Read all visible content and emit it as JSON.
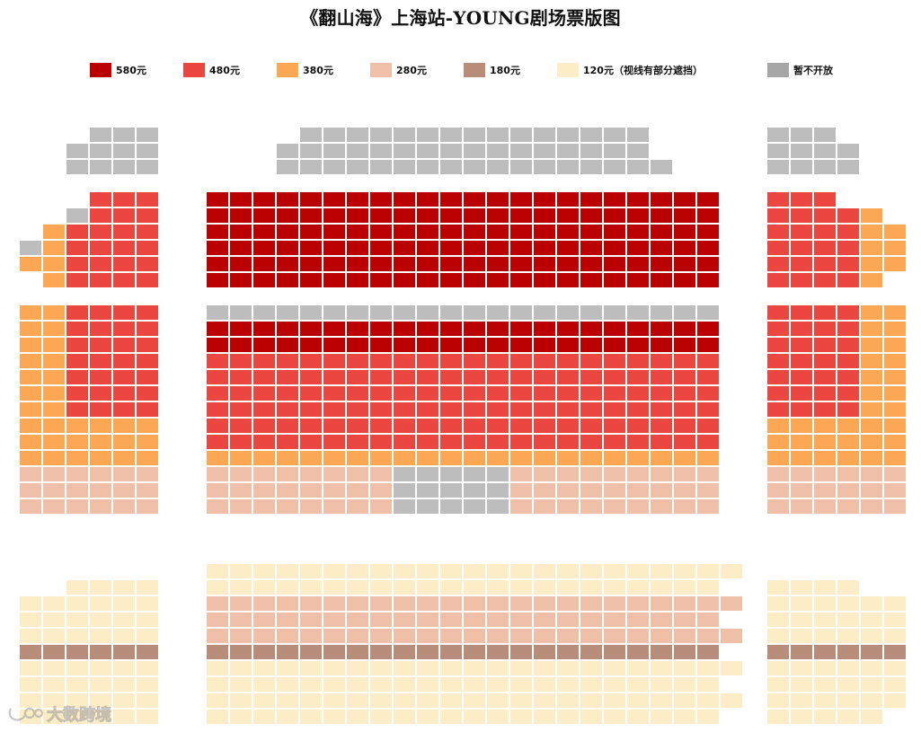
{
  "title": "《翻山海》上海站-YOUNG剧场票版图",
  "legend": [
    {
      "key": "p580",
      "label": "580元",
      "color": "#bb0000"
    },
    {
      "key": "p480",
      "label": "480元",
      "color": "#ec4640"
    },
    {
      "key": "p380",
      "label": "380元",
      "color": "#fba753"
    },
    {
      "key": "p280",
      "label": "280元",
      "color": "#efbfa8"
    },
    {
      "key": "p180",
      "label": "180元",
      "color": "#b88e7b"
    },
    {
      "key": "p120",
      "label": "120元（视线有部分遮挡）",
      "color": "#fdedc6"
    },
    {
      "key": "closed",
      "label": "暂不开放",
      "color": "#a6a6a6"
    }
  ],
  "seat_colors": {
    "B": "#bb0000",
    "R": "#ec4640",
    "O": "#fba753",
    "P": "#efbfa8",
    "N": "#b88e7b",
    "C": "#fdedc6",
    "G": "#bdbdbd"
  },
  "seat_legend": {
    "B": "580元",
    "R": "480元",
    "O": "380元",
    "P": "280元",
    "N": "180元",
    "C": "120元（视线有部分遮挡）",
    "G": "暂不开放"
  },
  "sections": {
    "top_left_balcony": [
      "...GGG",
      "..GGGG",
      "..GGGG"
    ],
    "top_center_balcony": [
      "....GGGGGGGGGGGGGGG",
      "...GGGGGGGGGGGGGGGG",
      "...GGGGGGGGGGGGGGGGG"
    ],
    "top_right_balcony": [
      "GGG.",
      "GGGG",
      "GGGG"
    ],
    "upper_left": [
      "...RRR",
      "..GRRR",
      ".ORRRR",
      "GORRRR",
      "OORRRR",
      ".ORRRR"
    ],
    "upper_center": [
      "BBBBBBBBBBBBBBBBBBBBBB",
      "BBBBBBBBBBBBBBBBBBBBBB",
      "BBBBBBBBBBBBBBBBBBBBBB",
      "BBBBBBBBBBBBBBBBBBBBBB",
      "BBBBBBBBBBBBBBBBBBBBBB",
      "BBBBBBBBBBBBBBBBBBBBBB"
    ],
    "upper_right": [
      "RRR...",
      "RRRRO.",
      "RRRROO",
      "RRRROO",
      "RRRROO",
      "RRRRO."
    ],
    "middle_left": [
      "OORRRR",
      "OORRRR",
      "OORRRR",
      "OORRRR",
      "OORRRR",
      "OORRRR",
      "OORRRR",
      "OOOOOO",
      "OOOOOO",
      "OOOOOO",
      "PPPPPP",
      "PPPPPP",
      "PPPPPP"
    ],
    "middle_center": [
      "GGGGGGGGGGGGGGGGGGGGGG",
      "BBBBBBBBBBBBBBBBBBBBBB",
      "BBBBBBBBBBBBBBBBBBBBBB",
      "RRRRRRRRRRRRRRRRRRRRRR",
      "RRRRRRRRRRRRRRRRRRRRRR",
      "RRRRRRRRRRRRRRRRRRRRRR",
      "RRRRRRRRRRRRRRRRRRRRRR",
      "RRRRRRRRRRRRRRRRRRRRRR",
      "RRRRRRRRRRRRRRRRRRRRRR",
      "OOOOOOOOOOOOOOOOOOOOOO",
      "PPPPPPPPGGGGGPPPPPPPPP",
      "PPPPPPPPGGGGGPPPPPPPPP",
      "PPPPPPPPGGGGGPPPPPPPPP"
    ],
    "middle_right": [
      "RRRROO",
      "RRRROO",
      "RRRROO",
      "RRRROO",
      "RRRROO",
      "RRRROO",
      "RRRROO",
      "OOOOOO",
      "OOOOOO",
      "OOOOOO",
      "PPPPPP",
      "PPPPPP",
      "PPPPPP"
    ],
    "lower_left": [
      "......",
      "..CCCC",
      "CCCCCC",
      "CCCCCC",
      "CCCCCC",
      "NNNNNN",
      "CCCCCC",
      "CCCCCC",
      "CCCCCC",
      "CCCCCC"
    ],
    "lower_center": [
      "CCCCCCCCCCCCCCCCCCCCCCC",
      "CCCCCCCCCCCCCCCCCCCCCC.",
      "PPPPPPPPPPPPPPPPPPPPPPP",
      "PPPPPPPPPPPPPPPPPPPPPP.",
      "PPPPPPPPPPPPPPPPPPPPPPP",
      "NNNNNNNNNNNNNNNNNNNNNN.",
      "CCCCCCCCCCCCCCCCCCCCCCC",
      "CCCCCCCCCCCCCCCCCCCCCC.",
      "CCCCCCCCCCCCCCCCCCCCCCC",
      "CCCCCCCCCCCCCCCCCCCCCC."
    ],
    "lower_right": [
      "......",
      "CCCC..",
      "CCCCCC",
      "CCCCCC",
      "CCCCCC",
      "NNNNNN",
      "CCCCCC",
      "CCCCCC",
      "CCCCCC",
      "CCCCC."
    ]
  },
  "watermark": {
    "text": "大数跨境",
    "icon": "brand-logo-icon"
  }
}
